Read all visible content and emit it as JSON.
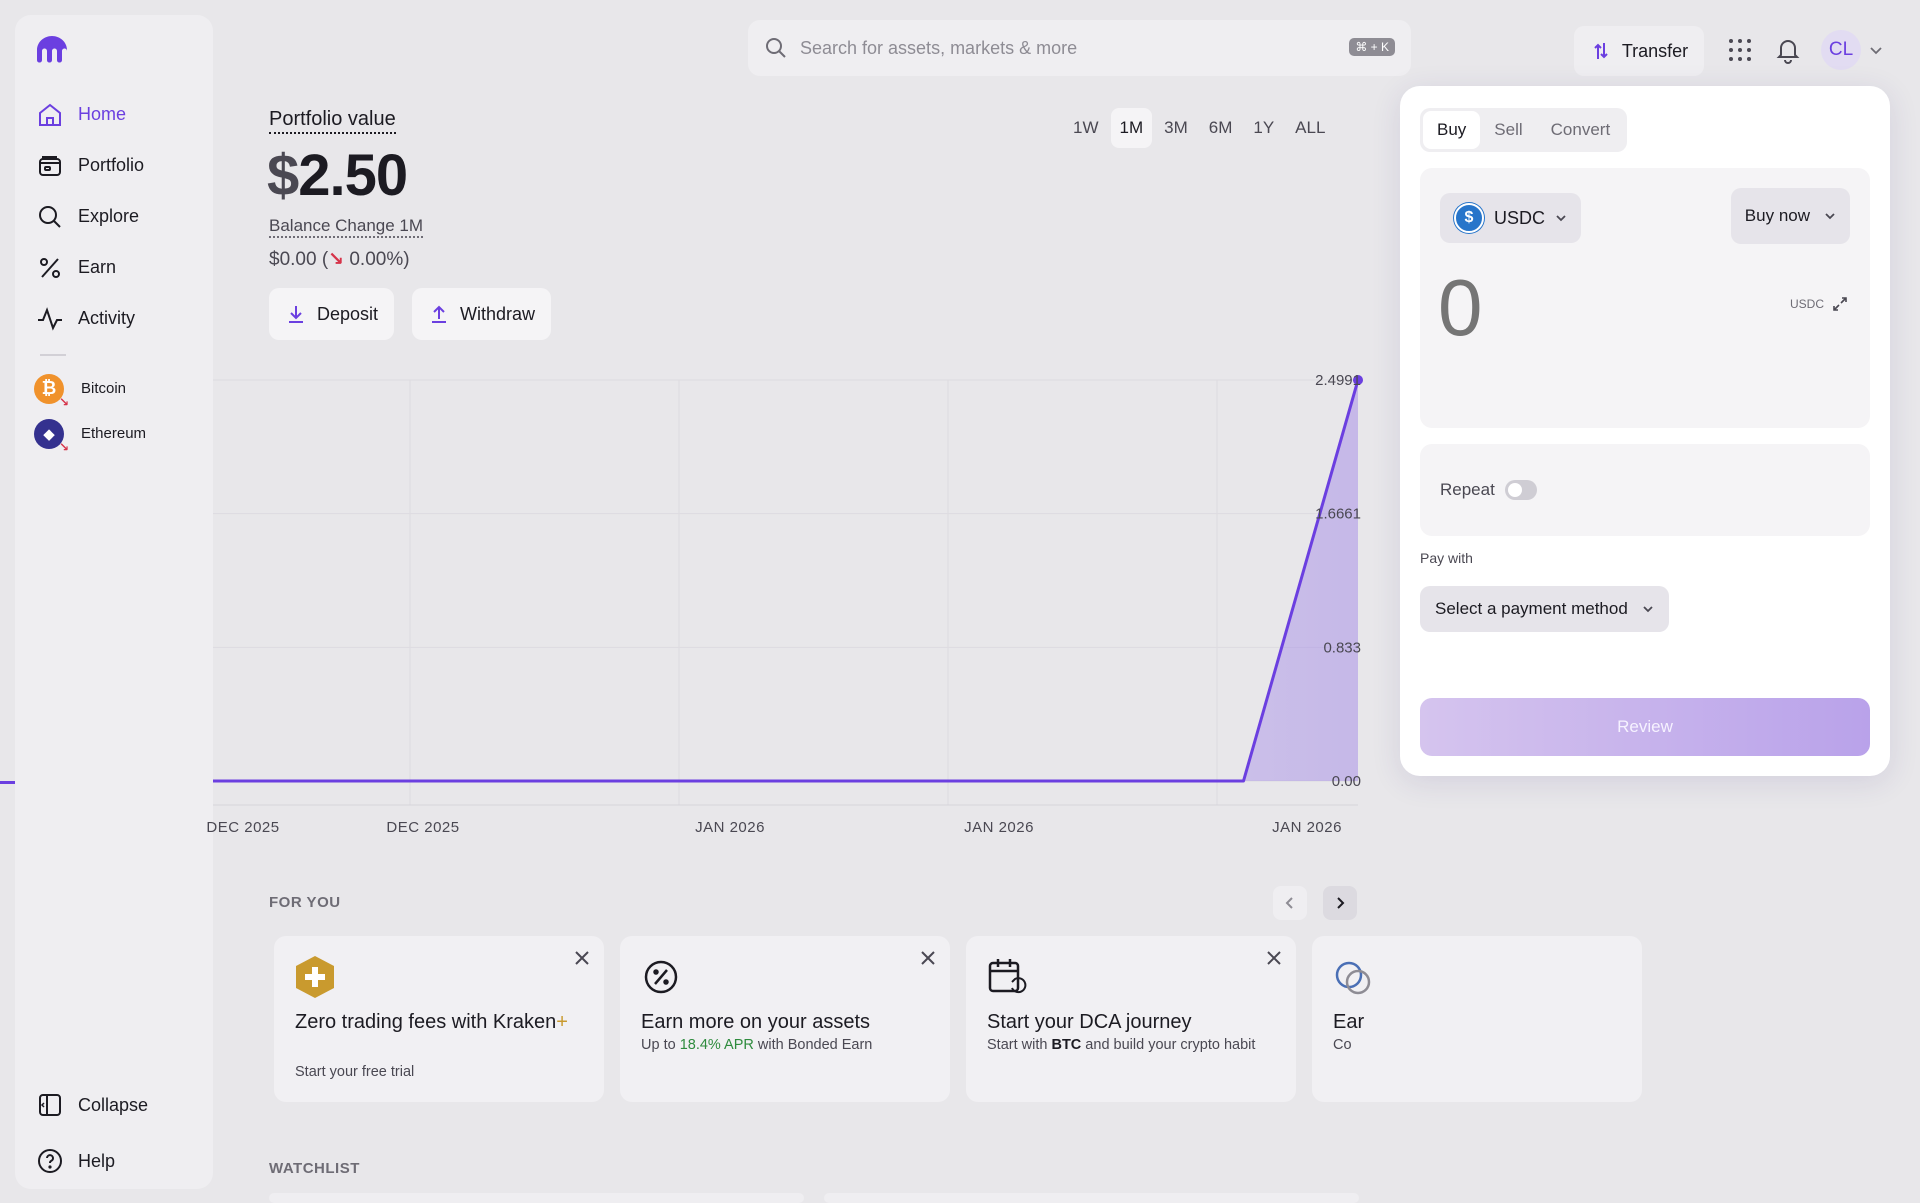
{
  "brand": {
    "accent": "#6b3fe0",
    "negative": "#d6344a",
    "positive": "#2e8b3d"
  },
  "sidebar": {
    "items": [
      {
        "label": "Home",
        "icon": "home-icon",
        "active": true
      },
      {
        "label": "Portfolio",
        "icon": "wallet-icon"
      },
      {
        "label": "Explore",
        "icon": "search-icon"
      },
      {
        "label": "Earn",
        "icon": "percent-icon"
      },
      {
        "label": "Activity",
        "icon": "activity-icon"
      }
    ],
    "assets": [
      {
        "label": "Bitcoin",
        "icon": "bitcoin-icon",
        "color": "#f0922c",
        "symbol": "₿"
      },
      {
        "label": "Ethereum",
        "icon": "ethereum-icon",
        "color": "#34318f",
        "symbol": "◆"
      }
    ],
    "collapse_label": "Collapse",
    "help_label": "Help"
  },
  "topbar": {
    "search_placeholder": "Search for assets, markets & more",
    "shortcut": "⌘ + K",
    "transfer_label": "Transfer",
    "avatar_initials": "CL"
  },
  "portfolio": {
    "label": "Portfolio value",
    "currency": "$",
    "value": "2.50",
    "balance_change_label": "Balance Change 1M",
    "change_prefix": "$0.00 (",
    "change_arrow": "↘",
    "change_suffix": " 0.00%)",
    "deposit_label": "Deposit",
    "withdraw_label": "Withdraw",
    "ranges": [
      "1W",
      "1M",
      "3M",
      "6M",
      "1Y",
      "ALL"
    ],
    "active_range": "1M"
  },
  "chart_data": {
    "type": "area",
    "ylim": [
      0,
      2.4991
    ],
    "y_ticks": [
      "2.4991",
      "1.6661",
      "0.833",
      "0.00"
    ],
    "x_tick_labels": [
      "DEC 2025",
      "DEC 2025",
      "JAN 2026",
      "JAN 2026",
      "JAN 2026"
    ],
    "series": [
      {
        "x": [
          0,
          0.9,
          1.0
        ],
        "values": [
          0,
          0,
          2.4991
        ]
      }
    ],
    "grid": true
  },
  "for_you": {
    "title": "FOR YOU",
    "cards": [
      {
        "icon": "kraken-plus-icon",
        "title": "Zero trading fees with Kraken",
        "title_suffix": "+",
        "sub": "Start your free trial"
      },
      {
        "icon": "percent-badge-icon",
        "title": "Earn more on your assets",
        "sub_pre": "Up to ",
        "sub_highlight": "18.4% APR",
        "sub_post": " with Bonded Earn"
      },
      {
        "icon": "calendar-repeat-icon",
        "title": "Start your DCA journey",
        "sub_pre": "Start with ",
        "sub_bold": "BTC",
        "sub_post": " and build your crypto habit"
      },
      {
        "icon": "coins-icon",
        "title": "Ear",
        "sub": "Co"
      }
    ]
  },
  "watchlist": {
    "title": "WATCHLIST"
  },
  "trade": {
    "tabs": [
      "Buy",
      "Sell",
      "Convert"
    ],
    "active_tab": "Buy",
    "asset": "USDC",
    "mode": "Buy now",
    "amount_placeholder": "0",
    "unit": "USDC",
    "repeat_label": "Repeat",
    "repeat_on": false,
    "pay_with_label": "Pay with",
    "payment_placeholder": "Select a payment method",
    "review_label": "Review"
  }
}
